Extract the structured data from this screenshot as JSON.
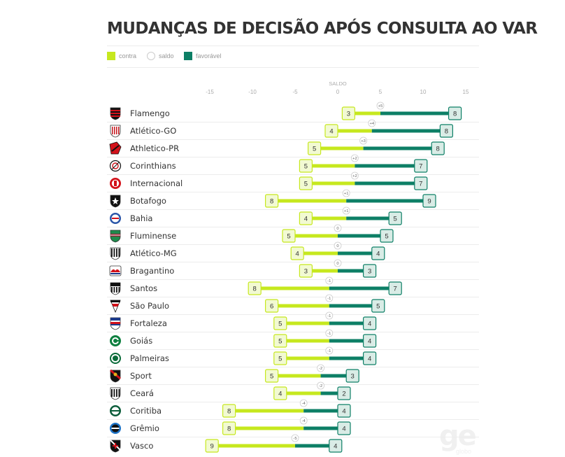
{
  "colors": {
    "contra": "#c6e81e",
    "favoravel": "#0d7f66",
    "saldo_border": "#cccccc",
    "grid": "#ececec"
  },
  "branding": {
    "logo": "ge",
    "sub": "globo"
  },
  "chart_data": {
    "type": "bar",
    "title": "MUDANÇAS DE DECISÃO APÓS CONSULTA AO VAR",
    "axis_title": "SALDO",
    "xlim": [
      -15,
      15
    ],
    "x_ticks": [
      -15,
      -10,
      -5,
      0,
      5,
      10,
      15
    ],
    "legend": {
      "placement": "top-left",
      "items": [
        "contra",
        "saldo",
        "favorável"
      ]
    },
    "teams": [
      {
        "name": "Flamengo",
        "contra": 3,
        "favoravel": 8,
        "saldo": "+5",
        "crest": "flamengo"
      },
      {
        "name": "Atlético-GO",
        "contra": 4,
        "favoravel": 8,
        "saldo": "+4",
        "crest": "atletico-go"
      },
      {
        "name": "Athletico-PR",
        "contra": 5,
        "favoravel": 8,
        "saldo": "+3",
        "crest": "athletico-pr"
      },
      {
        "name": "Corinthians",
        "contra": 5,
        "favoravel": 7,
        "saldo": "+2",
        "crest": "corinthians"
      },
      {
        "name": "Internacional",
        "contra": 5,
        "favoravel": 7,
        "saldo": "+2",
        "crest": "internacional"
      },
      {
        "name": "Botafogo",
        "contra": 8,
        "favoravel": 9,
        "saldo": "+1",
        "crest": "botafogo"
      },
      {
        "name": "Bahia",
        "contra": 4,
        "favoravel": 5,
        "saldo": "+1",
        "crest": "bahia"
      },
      {
        "name": "Fluminense",
        "contra": 5,
        "favoravel": 5,
        "saldo": "0",
        "crest": "fluminense"
      },
      {
        "name": "Atlético-MG",
        "contra": 4,
        "favoravel": 4,
        "saldo": "0",
        "crest": "atletico-mg"
      },
      {
        "name": "Bragantino",
        "contra": 3,
        "favoravel": 3,
        "saldo": "0",
        "crest": "bragantino"
      },
      {
        "name": "Santos",
        "contra": 8,
        "favoravel": 7,
        "saldo": "-1",
        "crest": "santos"
      },
      {
        "name": "São Paulo",
        "contra": 6,
        "favoravel": 5,
        "saldo": "-1",
        "crest": "sao-paulo"
      },
      {
        "name": "Fortaleza",
        "contra": 5,
        "favoravel": 4,
        "saldo": "-1",
        "crest": "fortaleza"
      },
      {
        "name": "Goiás",
        "contra": 5,
        "favoravel": 4,
        "saldo": "-1",
        "crest": "goias"
      },
      {
        "name": "Palmeiras",
        "contra": 5,
        "favoravel": 4,
        "saldo": "-1",
        "crest": "palmeiras"
      },
      {
        "name": "Sport",
        "contra": 5,
        "favoravel": 3,
        "saldo": "-2",
        "crest": "sport"
      },
      {
        "name": "Ceará",
        "contra": 4,
        "favoravel": 2,
        "saldo": "-2",
        "crest": "ceara"
      },
      {
        "name": "Coritiba",
        "contra": 8,
        "favoravel": 4,
        "saldo": "-4",
        "crest": "coritiba"
      },
      {
        "name": "Grêmio",
        "contra": 8,
        "favoravel": 4,
        "saldo": "-4",
        "crest": "gremio"
      },
      {
        "name": "Vasco",
        "contra": 9,
        "favoravel": 4,
        "saldo": "-5",
        "crest": "vasco"
      }
    ]
  }
}
